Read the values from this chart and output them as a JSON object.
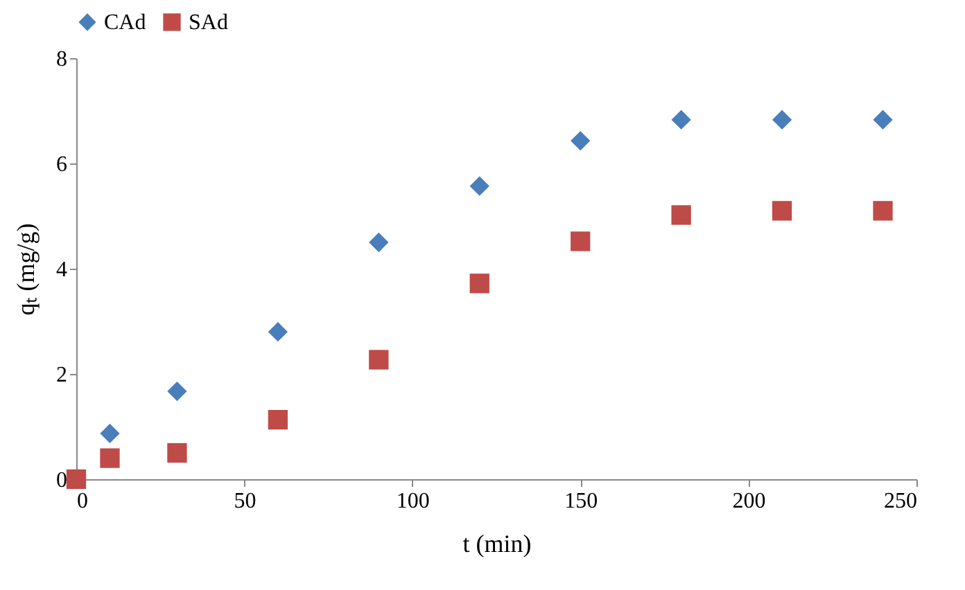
{
  "chart_data": {
    "type": "scatter",
    "xlabel": "t (min)",
    "ylabel": "qₜ (mg/g)",
    "xlim": [
      0,
      250
    ],
    "xticks": [
      0,
      50,
      100,
      150,
      200,
      250
    ],
    "ylim": [
      0,
      8
    ],
    "yticks": [
      0,
      2,
      4,
      6,
      8
    ],
    "grid": false,
    "legend": "top",
    "series": [
      {
        "name": "CAd",
        "color": "#4a7ebb",
        "marker": "diamond",
        "x": [
          10,
          30,
          60,
          90,
          120,
          150,
          180,
          210,
          240
        ],
        "values": [
          0.87,
          1.67,
          2.8,
          4.5,
          5.57,
          6.43,
          6.83,
          6.83,
          6.83
        ]
      },
      {
        "name": "SAd",
        "color": "#be4b48",
        "marker": "square",
        "x": [
          0,
          10,
          30,
          60,
          90,
          120,
          150,
          180,
          210,
          240
        ],
        "values": [
          0,
          0.4,
          0.5,
          1.13,
          2.27,
          3.72,
          4.52,
          5.02,
          5.1,
          5.1
        ]
      }
    ]
  }
}
